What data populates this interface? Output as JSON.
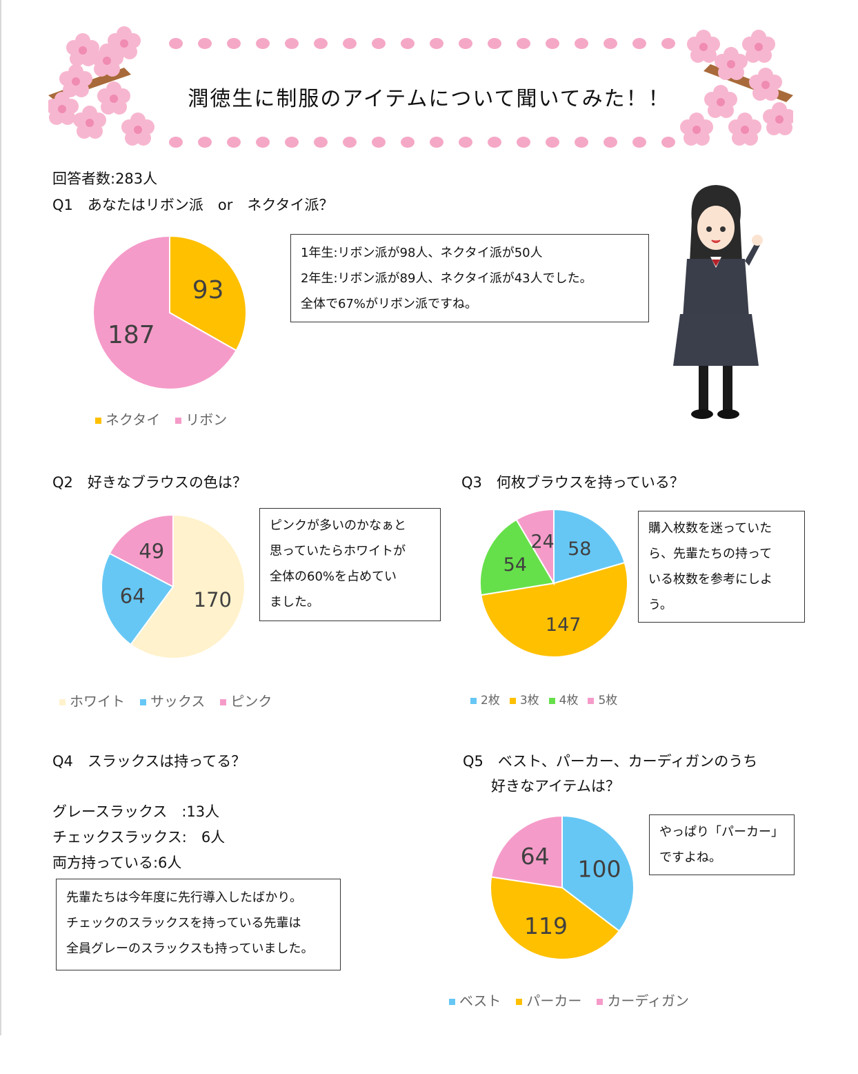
{
  "header": {
    "title": "潤徳生に制服のアイテムについて聞いてみた！！"
  },
  "respondents": "回答者数:283人",
  "q1": {
    "question": "Q1　あなたはリボン派　or　ネクタイ派？",
    "note_lines": [
      "1年生:リボン派が98人、ネクタイ派が50人",
      "2年生:リボン派が89人、ネクタイ派が43人でした。",
      "全体で67%がリボン派ですね。"
    ]
  },
  "q2": {
    "question": "Q2　好きなブラウスの色は？",
    "note_lines": [
      "ピンクが多いのかなぁと",
      "思っていたらホワイトが",
      "全体の60%を占めてい",
      "ました。"
    ]
  },
  "q3": {
    "question": "Q3　何枚ブラウスを持っている？",
    "note_lines": [
      "購入枚数を迷っていた",
      "ら、先輩たちの持って",
      "いる枚数を参考にしよ",
      "う。"
    ]
  },
  "q4": {
    "question": "Q4　スラックスは持ってる？",
    "answers": [
      "グレースラックス　:13人",
      "チェックスラックス:　6人",
      "両方持っている:6人"
    ],
    "note_lines": [
      "先輩たちは今年度に先行導入したばかり。",
      "チェックのスラックスを持っている先輩は",
      "全員グレーのスラックスも持っていました。"
    ]
  },
  "q5": {
    "question_lines": [
      "Q5　ベスト、パーカー、カーディガンのうち",
      "好きなアイテムは？"
    ],
    "note_lines": [
      "やっぱり「パーカー」",
      "ですよね。"
    ]
  },
  "chart_data": [
    {
      "type": "pie",
      "id": "q1",
      "categories": [
        "ネクタイ",
        "リボン"
      ],
      "values": [
        93,
        187
      ],
      "colors": [
        "#FFC000",
        "#F59BC9"
      ],
      "legend": "bottom"
    },
    {
      "type": "pie",
      "id": "q2",
      "categories": [
        "ホワイト",
        "サックス",
        "ピンク"
      ],
      "values": [
        170,
        64,
        49
      ],
      "colors": [
        "#FFF2CC",
        "#66C7F5",
        "#F59BC9"
      ],
      "legend": "bottom"
    },
    {
      "type": "pie",
      "id": "q3",
      "categories": [
        "2枚",
        "3枚",
        "4枚",
        "5枚"
      ],
      "values": [
        58,
        147,
        54,
        24
      ],
      "colors": [
        "#66C7F5",
        "#FFC000",
        "#66E04A",
        "#F59BC9"
      ],
      "legend": "bottom"
    },
    {
      "type": "pie",
      "id": "q5",
      "categories": [
        "ベスト",
        "パーカー",
        "カーディガン"
      ],
      "values": [
        100,
        119,
        64
      ],
      "colors": [
        "#66C7F5",
        "#FFC000",
        "#F59BC9"
      ],
      "legend": "bottom"
    }
  ]
}
